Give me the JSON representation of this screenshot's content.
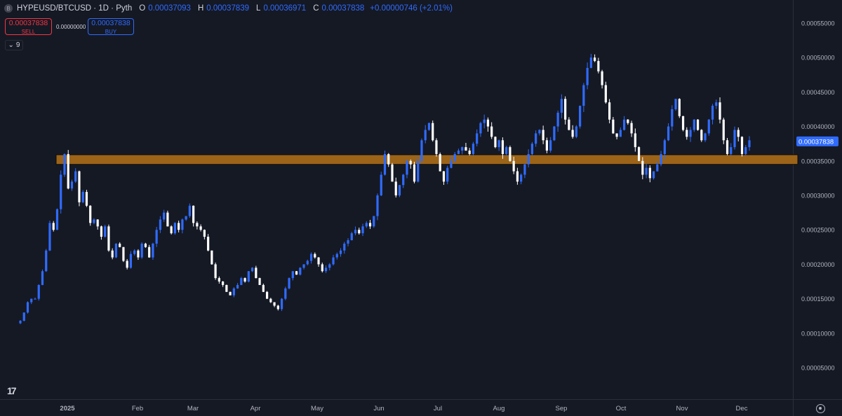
{
  "header": {
    "symbol_icon": "exchange-badge-icon",
    "title": "HYPEUSD/BTCUSD · 1D · Pyth",
    "open_label": "O",
    "open_value": "0.00037093",
    "high_label": "H",
    "high_value": "0.00037839",
    "low_label": "L",
    "low_value": "0.00036971",
    "close_label": "C",
    "close_value": "0.00037838",
    "change": "+0.00000746 (+2.01%)"
  },
  "trade_panel": {
    "sell_price": "0.00037838",
    "sell_label": "SELL",
    "spread": "0.00000000",
    "buy_price": "0.00037838",
    "buy_label": "BUY"
  },
  "indicators": {
    "count": "9",
    "icon": "chevron-down-icon"
  },
  "colors": {
    "background": "#151924",
    "up": "#2f6bff",
    "down": "#ffffff",
    "zone_fill": "#9c6418",
    "zone_border": "#0b0b0b",
    "price_badge": "#2f6bff"
  },
  "chart_data": {
    "type": "candlestick",
    "y_axis": {
      "range": [
        3e-05,
        0.00056
      ],
      "ticks": [
        "0.00055000",
        "0.00050000",
        "0.00045000",
        "0.00040000",
        "0.00035000",
        "0.00030000",
        "0.00025000",
        "0.00020000",
        "0.00015000",
        "0.00010000",
        "0.00005000"
      ],
      "last_price_label": "0.00037838"
    },
    "x_axis": {
      "ticks": [
        "2025",
        "Feb",
        "Mar",
        "Apr",
        "May",
        "Jun",
        "Jul",
        "Aug",
        "Sep",
        "Oct",
        "Nov",
        "Dec"
      ]
    },
    "zone": {
      "low": 0.000345,
      "high": 0.000359
    },
    "path_close": [
      0.000118,
      0.00013,
      0.000145,
      0.00015,
      0.00015,
      0.00017,
      0.00019,
      0.00022,
      0.00026,
      0.00025,
      0.00028,
      0.00033,
      0.00036,
      0.00031,
      0.00032,
      0.000335,
      0.00029,
      0.000305,
      0.000285,
      0.00026,
      0.000265,
      0.000255,
      0.00024,
      0.000255,
      0.00022,
      0.00021,
      0.00023,
      0.000225,
      0.000205,
      0.000195,
      0.000215,
      0.00022,
      0.00021,
      0.00023,
      0.000225,
      0.00021,
      0.00023,
      0.00025,
      0.000265,
      0.000275,
      0.000255,
      0.000245,
      0.00026,
      0.00025,
      0.000265,
      0.00027,
      0.000285,
      0.00026,
      0.000255,
      0.00025,
      0.00024,
      0.00022,
      0.0002,
      0.00018,
      0.000175,
      0.00017,
      0.00016,
      0.000155,
      0.000165,
      0.00017,
      0.00018,
      0.000175,
      0.00019,
      0.000195,
      0.00018,
      0.00017,
      0.00016,
      0.00015,
      0.000145,
      0.00014,
      0.000135,
      0.00015,
      0.000165,
      0.00018,
      0.00019,
      0.000185,
      0.000195,
      0.0002,
      0.000205,
      0.000215,
      0.00021,
      0.0002,
      0.00019,
      0.000195,
      0.0002,
      0.00021,
      0.000215,
      0.00022,
      0.00023,
      0.000235,
      0.000245,
      0.00025,
      0.000245,
      0.000255,
      0.00026,
      0.000255,
      0.00027,
      0.0003,
      0.00033,
      0.00036,
      0.000345,
      0.00032,
      0.0003,
      0.000315,
      0.00033,
      0.00035,
      0.000345,
      0.00032,
      0.00035,
      0.00038,
      0.000395,
      0.000405,
      0.00038,
      0.00036,
      0.000335,
      0.00032,
      0.00034,
      0.00035,
      0.00036,
      0.000365,
      0.00037,
      0.000365,
      0.00036,
      0.000375,
      0.00039,
      0.000405,
      0.00041,
      0.0004,
      0.000385,
      0.00037,
      0.00038,
      0.00036,
      0.00037,
      0.00035,
      0.000335,
      0.00032,
      0.00033,
      0.000345,
      0.00036,
      0.000375,
      0.00039,
      0.000395,
      0.00038,
      0.000365,
      0.00038,
      0.0004,
      0.00042,
      0.00044,
      0.00041,
      0.000395,
      0.000385,
      0.0004,
      0.00043,
      0.00046,
      0.000485,
      0.0005,
      0.000495,
      0.00048,
      0.00046,
      0.000435,
      0.00041,
      0.00039,
      0.000385,
      0.000395,
      0.00041,
      0.000405,
      0.00039,
      0.00037,
      0.00035,
      0.00033,
      0.00034,
      0.000325,
      0.000335,
      0.000345,
      0.00036,
      0.00038,
      0.0004,
      0.000425,
      0.00044,
      0.000415,
      0.000395,
      0.000385,
      0.000395,
      0.00041,
      0.000395,
      0.00038,
      0.00039,
      0.00041,
      0.00043,
      0.000435,
      0.00041,
      0.00038,
      0.00036,
      0.00037,
      0.000395,
      0.000385,
      0.00036,
      0.00037,
      0.00038
    ]
  }
}
